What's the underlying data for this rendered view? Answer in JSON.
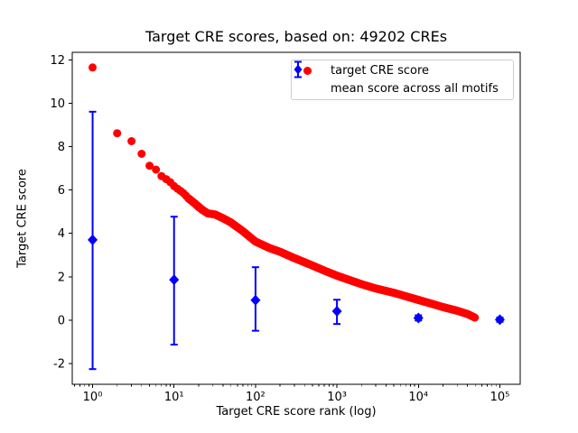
{
  "chart_data": {
    "type": "scatter",
    "title": "Target CRE scores, based on: 49202 CREs",
    "xlabel": "Target CRE score rank (log)",
    "ylabel": "Target CRE score",
    "x_scale": "log",
    "grid": false,
    "xlim": [
      0.5623,
      177828
    ],
    "ylim": [
      -2.96,
      12.35
    ],
    "xticks": [
      {
        "value": 1,
        "label": "10⁰"
      },
      {
        "value": 10,
        "label": "10¹"
      },
      {
        "value": 100,
        "label": "10²"
      },
      {
        "value": 1000,
        "label": "10³"
      },
      {
        "value": 10000,
        "label": "10⁴"
      },
      {
        "value": 100000,
        "label": "10⁵"
      }
    ],
    "yticks": [
      -2,
      0,
      2,
      4,
      6,
      8,
      10,
      12
    ],
    "colors": {
      "target": "#ff0000",
      "mean": "#0000ff",
      "axis": "#000000",
      "legend_edge": "#cccccc"
    },
    "legend": {
      "position": "upper right",
      "entries": [
        {
          "label": "target CRE score",
          "marker": "circle",
          "color": "#ff0000"
        },
        {
          "label": "mean score across all motifs",
          "marker": "diamond-errorbar",
          "color": "#0000ff"
        }
      ]
    },
    "series": [
      {
        "name": "target CRE score",
        "type": "scatter",
        "marker": "circle",
        "color": "#ff0000",
        "points": [
          [
            1,
            11.65
          ],
          [
            2,
            8.62
          ],
          [
            3,
            8.25
          ],
          [
            4,
            7.67
          ],
          [
            5,
            7.12
          ],
          [
            6,
            6.94
          ],
          [
            7,
            6.64
          ],
          [
            8,
            6.5
          ],
          [
            9,
            6.36
          ],
          [
            10,
            6.18
          ],
          [
            11,
            6.06
          ],
          [
            12,
            5.96
          ],
          [
            13,
            5.86
          ],
          [
            14,
            5.74
          ],
          [
            15,
            5.62
          ],
          [
            16,
            5.53
          ],
          [
            17,
            5.45
          ],
          [
            18,
            5.38
          ],
          [
            19,
            5.29
          ],
          [
            20,
            5.21
          ]
        ],
        "band": [
          [
            15,
            5.62
          ],
          [
            18,
            5.38
          ],
          [
            22,
            5.1
          ],
          [
            26,
            4.92
          ],
          [
            32,
            4.87
          ],
          [
            40,
            4.7
          ],
          [
            50,
            4.5
          ],
          [
            70,
            4.1
          ],
          [
            100,
            3.62
          ],
          [
            150,
            3.32
          ],
          [
            200,
            3.15
          ],
          [
            300,
            2.86
          ],
          [
            500,
            2.52
          ],
          [
            700,
            2.28
          ],
          [
            1000,
            2.05
          ],
          [
            1500,
            1.82
          ],
          [
            2000,
            1.66
          ],
          [
            3000,
            1.46
          ],
          [
            5000,
            1.26
          ],
          [
            7000,
            1.1
          ],
          [
            10000,
            0.93
          ],
          [
            15000,
            0.74
          ],
          [
            20000,
            0.6
          ],
          [
            30000,
            0.43
          ],
          [
            40000,
            0.28
          ],
          [
            49202,
            0.12
          ]
        ]
      },
      {
        "name": "mean score across all motifs",
        "type": "errorbar",
        "marker": "diamond",
        "color": "#0000ff",
        "points": [
          {
            "x": 1,
            "y": 3.7,
            "lo": -2.26,
            "hi": 9.61
          },
          {
            "x": 10,
            "y": 1.86,
            "lo": -1.13,
            "hi": 4.77
          },
          {
            "x": 100,
            "y": 0.92,
            "lo": -0.49,
            "hi": 2.44
          },
          {
            "x": 1000,
            "y": 0.41,
            "lo": -0.18,
            "hi": 0.94
          },
          {
            "x": 10000,
            "y": 0.1,
            "lo": -0.02,
            "hi": 0.22
          },
          {
            "x": 100000,
            "y": 0.02,
            "lo": -0.08,
            "hi": 0.12
          }
        ]
      }
    ]
  }
}
